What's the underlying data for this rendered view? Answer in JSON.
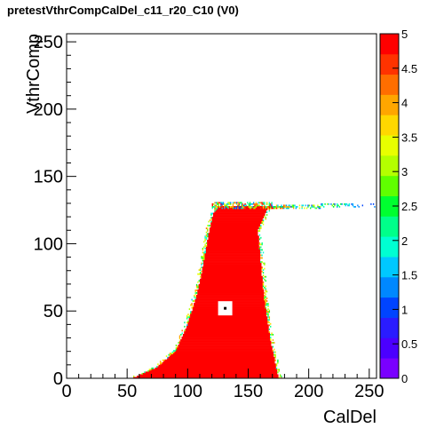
{
  "chart_data": {
    "type": "heatmap",
    "title": "pretestVthrCompCalDel_c11_r20_C10 (V0)",
    "xlabel": "CalDel",
    "ylabel": "VthrComp",
    "xlim": [
      0,
      256
    ],
    "ylim": [
      0,
      256
    ],
    "x_ticks": [
      "0",
      "50",
      "100",
      "150",
      "200",
      "250"
    ],
    "y_ticks": [
      "0",
      "50",
      "100",
      "150",
      "200",
      "250"
    ],
    "z_range": [
      0,
      5
    ],
    "z_ticks": [
      "0",
      "0.5",
      "1",
      "1.5",
      "2",
      "2.5",
      "3",
      "3.5",
      "4",
      "4.5",
      "5"
    ],
    "colormap": [
      "#7a00ff",
      "#4b00ff",
      "#2a1cff",
      "#0044ff",
      "#0088ff",
      "#00c8ff",
      "#00ffd2",
      "#00ff8a",
      "#00ff30",
      "#60ff00",
      "#b4ff00",
      "#e8ff00",
      "#ffd800",
      "#ffa600",
      "#ff6e00",
      "#ff3300",
      "#ff0000"
    ],
    "plateau_value": 5,
    "region": {
      "lower_edge": [
        [
          55,
          0
        ],
        [
          75,
          8
        ],
        [
          90,
          20
        ],
        [
          100,
          40
        ],
        [
          107,
          60
        ],
        [
          112,
          80
        ],
        [
          117,
          105
        ],
        [
          121,
          122
        ],
        [
          124,
          125
        ]
      ],
      "upper_edge": [
        [
          175,
          0
        ],
        [
          168,
          30
        ],
        [
          163,
          60
        ],
        [
          160,
          90
        ],
        [
          158,
          110
        ],
        [
          166,
          125
        ],
        [
          176,
          127
        ]
      ],
      "bottom_edge_x": [
        62,
        186
      ],
      "top_tail_x": [
        170,
        256
      ],
      "top_value_y": 127
    },
    "marked_point": {
      "x": 131,
      "y": 52
    }
  }
}
